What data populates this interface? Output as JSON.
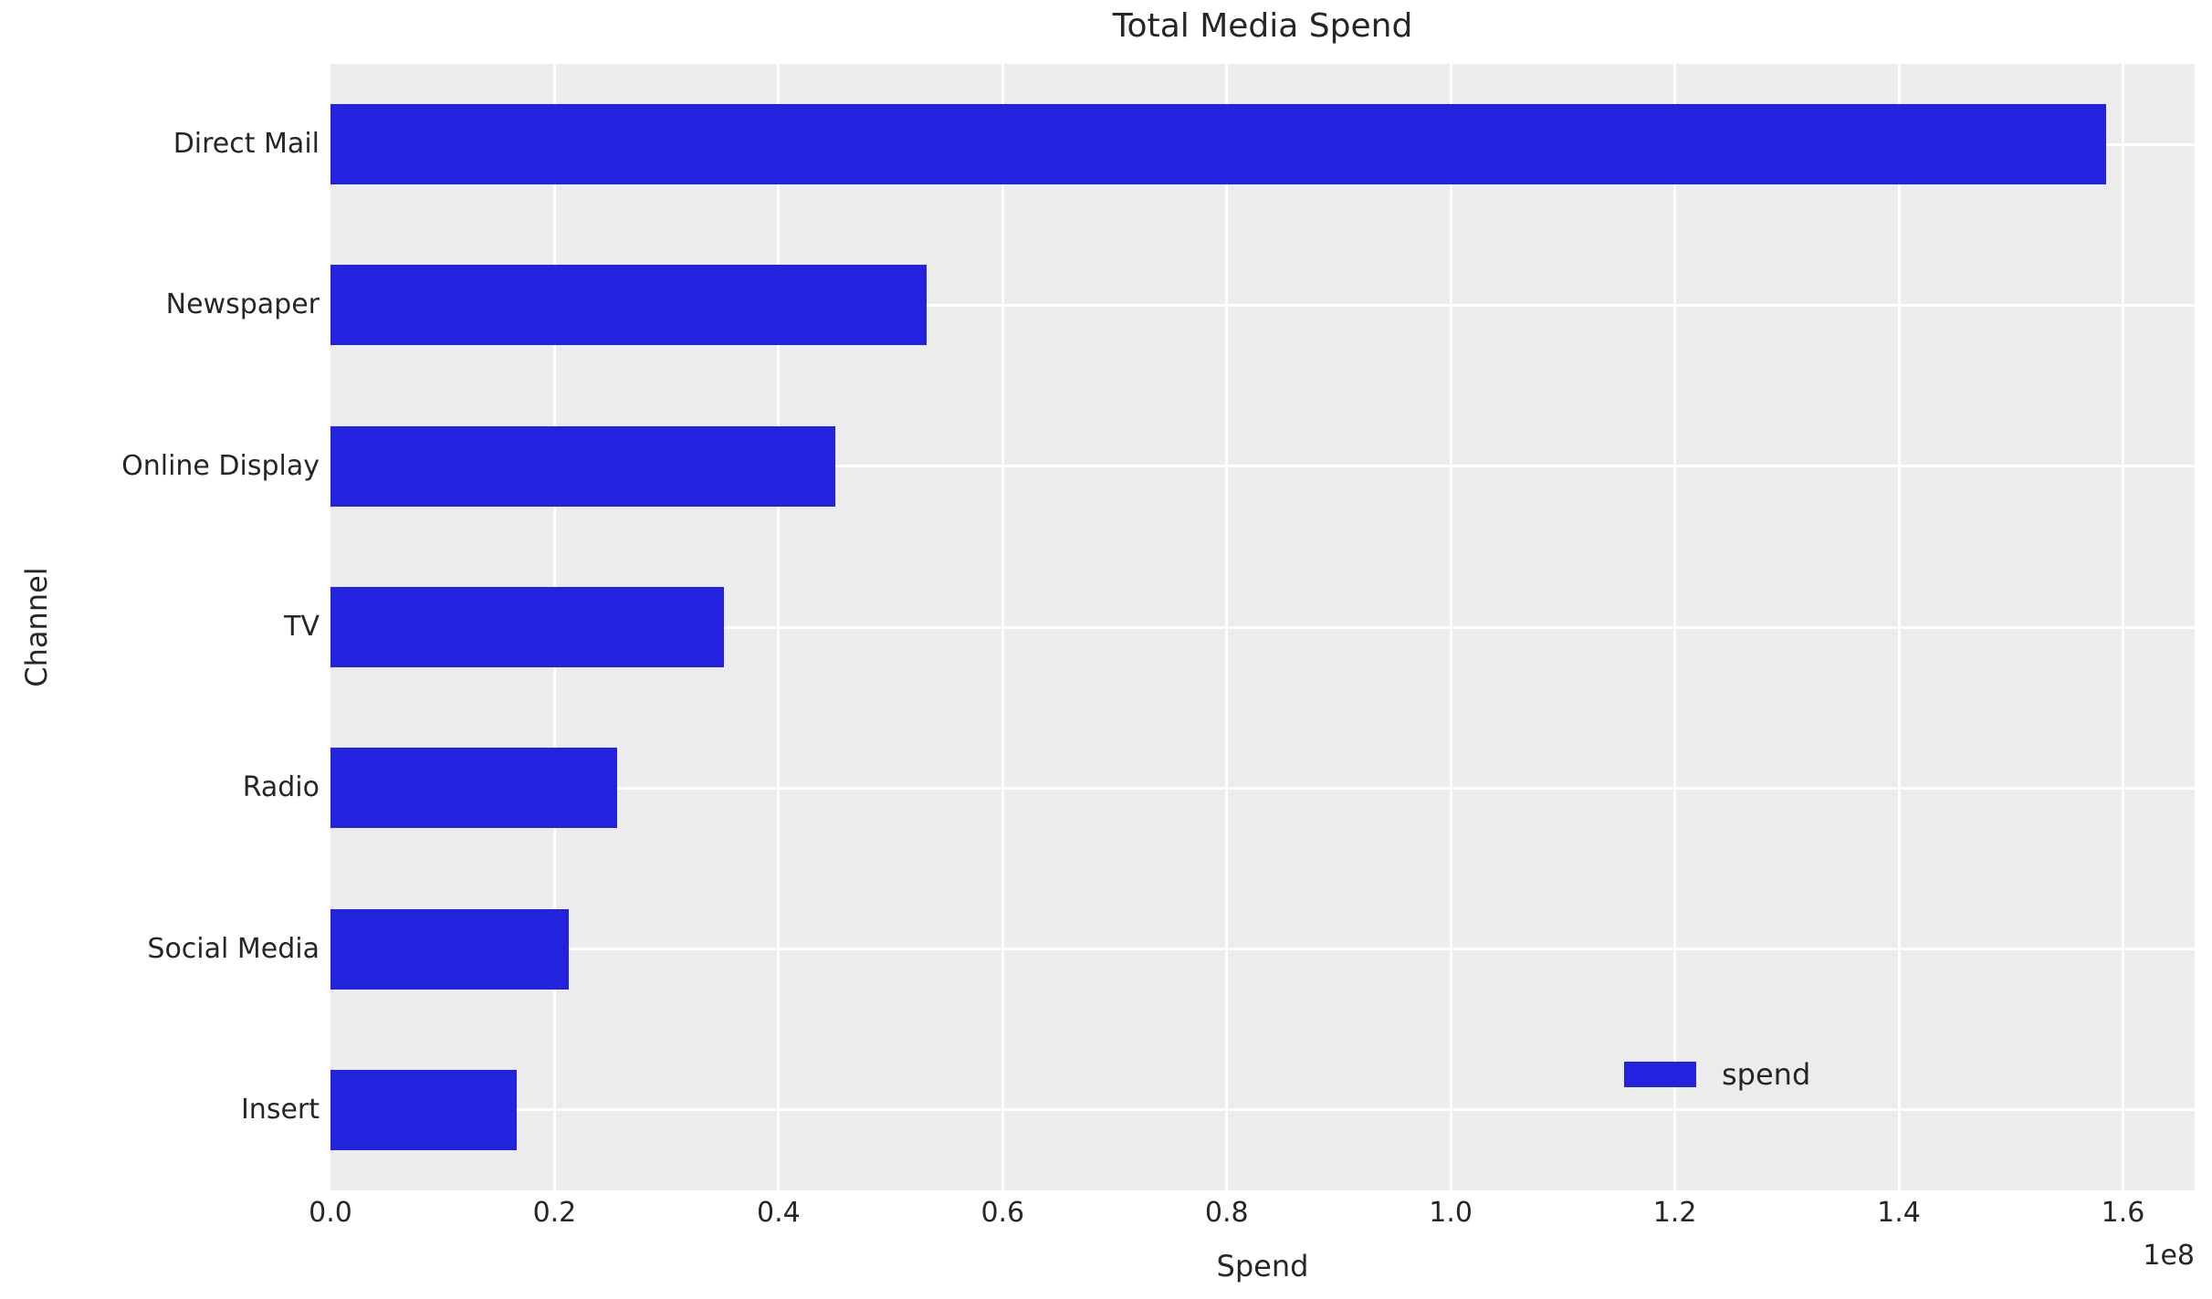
{
  "chart_data": {
    "type": "bar",
    "orientation": "horizontal",
    "title": "Total Media Spend",
    "xlabel": "Spend",
    "ylabel": "Channel",
    "categories": [
      "Direct Mail",
      "Newspaper",
      "Online Display",
      "TV",
      "Radio",
      "Social Media",
      "Insert"
    ],
    "series": [
      {
        "name": "spend",
        "values": [
          158500000,
          53200000,
          45100000,
          35100000,
          25600000,
          21300000,
          16600000
        ]
      }
    ],
    "xlim": [
      0,
      166400000
    ],
    "x_ticks": [
      0,
      20000000,
      40000000,
      60000000,
      80000000,
      100000000,
      120000000,
      140000000,
      160000000
    ],
    "x_tick_labels": [
      "0.0",
      "0.2",
      "0.4",
      "0.6",
      "0.8",
      "1.0",
      "1.2",
      "1.4",
      "1.6"
    ],
    "axis_offset_text": "1e8",
    "grid": true,
    "legend": {
      "label": "spend",
      "position": "lower right"
    },
    "bar_height_fraction": 0.5,
    "colors": {
      "bar": "#2222DF",
      "plot_background": "#ECECEC",
      "gridline": "#FFFFFF",
      "text": "#262626",
      "figure_background": "#FFFFFF"
    }
  }
}
